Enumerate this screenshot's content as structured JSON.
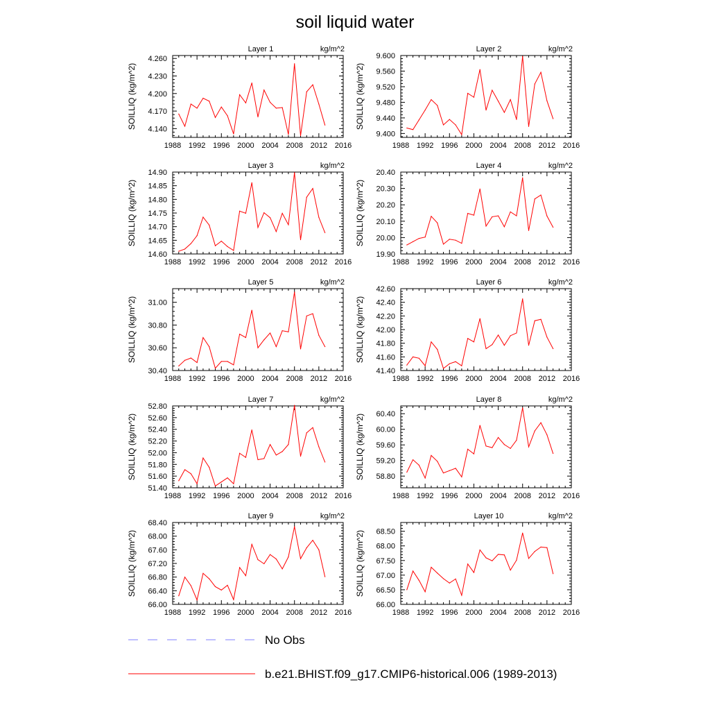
{
  "title": "soil liquid water",
  "colors": {
    "model": "#ff0000",
    "obs": "#9999ff",
    "axis": "#000000"
  },
  "legend": {
    "placement": "bottom",
    "items": [
      {
        "label": "No Obs",
        "style": "dashed",
        "color": "#9999ff"
      },
      {
        "label": "b.e21.BHIST.f09_g17.CMIP6-historical.006 (1989-2013)",
        "style": "solid",
        "color": "#ff0000"
      }
    ]
  },
  "chart_data": [
    {
      "type": "line",
      "title": "Layer 1",
      "units": "kg/m^2",
      "ylabel": "SOILLIQ  (kg/m^2)",
      "xlim": [
        1988,
        2016
      ],
      "xticks": [
        1988,
        1992,
        1996,
        2000,
        2004,
        2008,
        2012,
        2016
      ],
      "ylim": [
        4.125,
        4.265
      ],
      "yticks": [
        "4.140",
        "4.170",
        "4.200",
        "4.230",
        "4.260"
      ],
      "x": [
        1989,
        1990,
        1991,
        1992,
        1993,
        1994,
        1995,
        1996,
        1997,
        1998,
        1999,
        2000,
        2001,
        2002,
        2003,
        2004,
        2005,
        2006,
        2007,
        2008,
        2009,
        2010,
        2011,
        2012,
        2013
      ],
      "series": [
        {
          "values": [
            4.165,
            4.144,
            4.182,
            4.175,
            4.192,
            4.187,
            4.159,
            4.177,
            4.162,
            4.131,
            4.198,
            4.184,
            4.218,
            4.16,
            4.206,
            4.185,
            4.175,
            4.176,
            4.13,
            4.251,
            4.128,
            4.203,
            4.215,
            4.182,
            4.146
          ]
        }
      ]
    },
    {
      "type": "line",
      "title": "Layer 2",
      "units": "kg/m^2",
      "ylabel": "SOILLIQ  (kg/m^2)",
      "xlim": [
        1988,
        2016
      ],
      "xticks": [
        1988,
        1992,
        1996,
        2000,
        2004,
        2008,
        2012,
        2016
      ],
      "ylim": [
        9.39,
        9.6
      ],
      "yticks": [
        "9.400",
        "9.440",
        "9.480",
        "9.520",
        "9.560",
        "9.600"
      ],
      "x": [
        1989,
        1990,
        1991,
        1992,
        1993,
        1994,
        1995,
        1996,
        1997,
        1998,
        1999,
        2000,
        2001,
        2002,
        2003,
        2004,
        2005,
        2006,
        2007,
        2008,
        2009,
        2010,
        2011,
        2012,
        2013
      ],
      "series": [
        {
          "values": [
            9.414,
            9.41,
            9.435,
            9.46,
            9.487,
            9.472,
            9.422,
            9.436,
            9.422,
            9.397,
            9.503,
            9.493,
            9.564,
            9.46,
            9.511,
            9.483,
            9.454,
            9.487,
            9.436,
            9.598,
            9.418,
            9.527,
            9.557,
            9.484,
            9.438
          ]
        }
      ]
    },
    {
      "type": "line",
      "title": "Layer 3",
      "units": "kg/m^2",
      "ylabel": "SOILLIQ  (kg/m^2)",
      "xlim": [
        1988,
        2016
      ],
      "xticks": [
        1988,
        1992,
        1996,
        2000,
        2004,
        2008,
        2012,
        2016
      ],
      "ylim": [
        14.6,
        14.9
      ],
      "yticks": [
        "14.60",
        "14.65",
        "14.70",
        "14.75",
        "14.80",
        "14.85",
        "14.90"
      ],
      "x": [
        1989,
        1990,
        1991,
        1992,
        1993,
        1994,
        1995,
        1996,
        1997,
        1998,
        1999,
        2000,
        2001,
        2002,
        2003,
        2004,
        2005,
        2006,
        2007,
        2008,
        2009,
        2010,
        2011,
        2012,
        2013
      ],
      "series": [
        {
          "values": [
            14.61,
            14.618,
            14.638,
            14.667,
            14.735,
            14.706,
            14.63,
            14.647,
            14.627,
            14.613,
            14.757,
            14.749,
            14.861,
            14.697,
            14.751,
            14.733,
            14.682,
            14.749,
            14.707,
            14.898,
            14.652,
            14.808,
            14.84,
            14.734,
            14.678
          ]
        }
      ]
    },
    {
      "type": "line",
      "title": "Layer 4",
      "units": "kg/m^2",
      "ylabel": "SOILLIQ  (kg/m^2)",
      "xlim": [
        1988,
        2016
      ],
      "xticks": [
        1988,
        1992,
        1996,
        2000,
        2004,
        2008,
        2012,
        2016
      ],
      "ylim": [
        19.9,
        20.4
      ],
      "yticks": [
        "19.90",
        "20.00",
        "20.10",
        "20.20",
        "20.30",
        "20.40"
      ],
      "x": [
        1989,
        1990,
        1991,
        1992,
        1993,
        1994,
        1995,
        1996,
        1997,
        1998,
        1999,
        2000,
        2001,
        2002,
        2003,
        2004,
        2005,
        2006,
        2007,
        2008,
        2009,
        2010,
        2011,
        2012,
        2013
      ],
      "series": [
        {
          "values": [
            19.955,
            19.975,
            19.995,
            20.003,
            20.13,
            20.09,
            19.96,
            19.99,
            19.984,
            19.965,
            20.148,
            20.137,
            20.297,
            20.07,
            20.127,
            20.133,
            20.066,
            20.157,
            20.133,
            20.365,
            20.043,
            20.236,
            20.26,
            20.132,
            20.063
          ]
        }
      ]
    },
    {
      "type": "line",
      "title": "Layer 5",
      "units": "kg/m^2",
      "ylabel": "SOILLIQ  (kg/m^2)",
      "xlim": [
        1988,
        2016
      ],
      "xticks": [
        1988,
        1992,
        1996,
        2000,
        2004,
        2008,
        2012,
        2016
      ],
      "ylim": [
        30.4,
        31.12
      ],
      "yticks": [
        "30.40",
        "30.60",
        "30.80",
        "31.00"
      ],
      "x": [
        1989,
        1990,
        1991,
        1992,
        1993,
        1994,
        1995,
        1996,
        1997,
        1998,
        1999,
        2000,
        2001,
        2002,
        2003,
        2004,
        2005,
        2006,
        2007,
        2008,
        2009,
        2010,
        2011,
        2012,
        2013
      ],
      "series": [
        {
          "values": [
            30.44,
            30.49,
            30.51,
            30.47,
            30.69,
            30.61,
            30.42,
            30.48,
            30.48,
            30.45,
            30.72,
            30.69,
            30.93,
            30.6,
            30.67,
            30.73,
            30.61,
            30.75,
            30.74,
            31.09,
            30.59,
            30.88,
            30.9,
            30.71,
            30.61
          ]
        }
      ]
    },
    {
      "type": "line",
      "title": "Layer 6",
      "units": "kg/m^2",
      "ylabel": "SOILLIQ  (kg/m^2)",
      "xlim": [
        1988,
        2016
      ],
      "xticks": [
        1988,
        1992,
        1996,
        2000,
        2004,
        2008,
        2012,
        2016
      ],
      "ylim": [
        41.4,
        42.6
      ],
      "yticks": [
        "41.40",
        "41.60",
        "41.80",
        "42.00",
        "42.20",
        "42.40",
        "42.60"
      ],
      "x": [
        1989,
        1990,
        1991,
        1992,
        1993,
        1994,
        1995,
        1996,
        1997,
        1998,
        1999,
        2000,
        2001,
        2002,
        2003,
        2004,
        2005,
        2006,
        2007,
        2008,
        2009,
        2010,
        2011,
        2012,
        2013
      ],
      "series": [
        {
          "values": [
            41.48,
            41.6,
            41.58,
            41.47,
            41.82,
            41.71,
            41.43,
            41.5,
            41.53,
            41.47,
            41.87,
            41.82,
            42.16,
            41.72,
            41.78,
            41.92,
            41.77,
            41.91,
            41.95,
            42.45,
            41.77,
            42.13,
            42.15,
            41.89,
            41.72
          ]
        }
      ]
    },
    {
      "type": "line",
      "title": "Layer 7",
      "units": "kg/m^2",
      "ylabel": "SOILLIQ  (kg/m^2)",
      "xlim": [
        1988,
        2016
      ],
      "xticks": [
        1988,
        1992,
        1996,
        2000,
        2004,
        2008,
        2012,
        2016
      ],
      "ylim": [
        51.4,
        52.8
      ],
      "yticks": [
        "51.40",
        "51.60",
        "51.80",
        "52.00",
        "52.20",
        "52.40",
        "52.60",
        "52.80"
      ],
      "x": [
        1989,
        1990,
        1991,
        1992,
        1993,
        1994,
        1995,
        1996,
        1997,
        1998,
        1999,
        2000,
        2001,
        2002,
        2003,
        2004,
        2005,
        2006,
        2007,
        2008,
        2009,
        2010,
        2011,
        2012,
        2013
      ],
      "series": [
        {
          "values": [
            51.52,
            51.71,
            51.64,
            51.47,
            51.91,
            51.75,
            51.43,
            51.5,
            51.57,
            51.47,
            51.99,
            51.92,
            52.39,
            51.88,
            51.9,
            52.14,
            51.96,
            52.02,
            52.14,
            52.81,
            51.94,
            52.34,
            52.43,
            52.1,
            51.84
          ]
        }
      ]
    },
    {
      "type": "line",
      "title": "Layer 8",
      "units": "kg/m^2",
      "ylabel": "SOILLIQ  (kg/m^2)",
      "xlim": [
        1988,
        2016
      ],
      "xticks": [
        1988,
        1992,
        1996,
        2000,
        2004,
        2008,
        2012,
        2016
      ],
      "ylim": [
        58.5,
        60.6
      ],
      "yticks": [
        "58.80",
        "59.20",
        "59.60",
        "60.00",
        "60.40"
      ],
      "x": [
        1989,
        1990,
        1991,
        1992,
        1993,
        1994,
        1995,
        1996,
        1997,
        1998,
        1999,
        2000,
        2001,
        2002,
        2003,
        2004,
        2005,
        2006,
        2007,
        2008,
        2009,
        2010,
        2011,
        2012,
        2013
      ],
      "series": [
        {
          "values": [
            58.9,
            59.22,
            59.08,
            58.75,
            59.33,
            59.18,
            58.88,
            58.94,
            59.0,
            58.78,
            59.49,
            59.37,
            60.1,
            59.57,
            59.53,
            59.79,
            59.61,
            59.51,
            59.72,
            60.55,
            59.55,
            59.96,
            60.17,
            59.86,
            59.38
          ]
        }
      ]
    },
    {
      "type": "line",
      "title": "Layer 9",
      "units": "kg/m^2",
      "ylabel": "SOILLIQ  (kg/m^2)",
      "xlim": [
        1988,
        2016
      ],
      "xticks": [
        1988,
        1992,
        1996,
        2000,
        2004,
        2008,
        2012,
        2016
      ],
      "ylim": [
        66.0,
        68.4
      ],
      "yticks": [
        "66.00",
        "66.40",
        "66.80",
        "67.20",
        "67.60",
        "68.00",
        "68.40"
      ],
      "x": [
        1989,
        1990,
        1991,
        1992,
        1993,
        1994,
        1995,
        1996,
        1997,
        1998,
        1999,
        2000,
        2001,
        2002,
        2003,
        2004,
        2005,
        2006,
        2007,
        2008,
        2009,
        2010,
        2011,
        2012,
        2013
      ],
      "series": [
        {
          "values": [
            66.25,
            66.8,
            66.55,
            66.13,
            66.91,
            66.75,
            66.52,
            66.42,
            66.56,
            66.14,
            67.08,
            66.84,
            67.76,
            67.31,
            67.19,
            67.46,
            67.33,
            67.04,
            67.39,
            68.28,
            67.34,
            67.66,
            67.88,
            67.6,
            66.81
          ]
        }
      ]
    },
    {
      "type": "line",
      "title": "Layer 10",
      "units": "kg/m^2",
      "ylabel": "SOILLIQ  (kg/m^2)",
      "xlim": [
        1988,
        2016
      ],
      "xticks": [
        1988,
        1992,
        1996,
        2000,
        2004,
        2008,
        2012,
        2016
      ],
      "ylim": [
        66.0,
        68.8
      ],
      "yticks": [
        "66.00",
        "66.50",
        "67.00",
        "67.50",
        "68.00",
        "68.50"
      ],
      "x": [
        1989,
        1990,
        1991,
        1992,
        1993,
        1994,
        1995,
        1996,
        1997,
        1998,
        1999,
        2000,
        2001,
        2002,
        2003,
        2004,
        2005,
        2006,
        2007,
        2008,
        2009,
        2010,
        2011,
        2012,
        2013
      ],
      "series": [
        {
          "values": [
            66.5,
            67.14,
            66.82,
            66.43,
            67.27,
            67.07,
            66.88,
            66.73,
            66.87,
            66.31,
            67.38,
            67.09,
            67.86,
            67.59,
            67.49,
            67.71,
            67.69,
            67.17,
            67.51,
            68.44,
            67.57,
            67.81,
            67.96,
            67.94,
            67.05
          ]
        }
      ]
    }
  ]
}
